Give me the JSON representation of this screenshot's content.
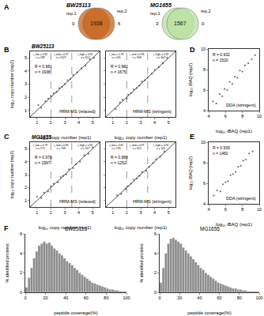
{
  "chart_data": [
    {
      "type": "venn",
      "panel": "A",
      "title": "BW25113",
      "sets": [
        "rep.1",
        "rep.2"
      ],
      "values": [
        0,
        1938,
        6
      ],
      "color": "#c8651b"
    },
    {
      "type": "venn",
      "title": "MG1655",
      "sets": [
        "rep.1",
        "rep.2"
      ],
      "values": [
        3,
        1567,
        0
      ],
      "color": "#b9e2a2"
    },
    {
      "type": "scatter",
      "panel": "B",
      "subtitle": "BW25113",
      "title": "HRM-MS (relaxed)",
      "stats": [
        "R = 0.981",
        "n = 1938"
      ],
      "xlabel": "log₁₀ copy number (rep1)",
      "ylabel": "log₁₀ copy number (rep2)",
      "x": [
        1.1,
        1.3,
        1.6,
        1.8,
        2.0,
        2.2,
        2.4,
        2.6,
        2.8,
        3.0,
        3.2,
        3.4,
        3.6,
        3.9,
        4.2,
        4.5,
        4.8,
        5.1
      ],
      "y": [
        1.4,
        1.2,
        1.7,
        1.9,
        2.1,
        2.3,
        2.4,
        2.7,
        2.8,
        3.0,
        3.3,
        3.4,
        3.7,
        3.9,
        4.2,
        4.4,
        4.9,
        5.0
      ],
      "xlim": [
        0.5,
        5.5
      ],
      "ylim": [
        0.5,
        5.5
      ],
      "xticks": [
        1,
        2,
        3,
        4,
        5
      ],
      "yticks": [
        1,
        2,
        3,
        4,
        5
      ],
      "vlines": [
        2,
        3.5
      ],
      "region_labels": [
        [
          "r_low = 0.81",
          "n = 289"
        ],
        [
          "r_mid = 0.97",
          "n = 1027"
        ],
        [
          "r_high = 0.92",
          "n = 622"
        ]
      ],
      "color": "#333333"
    },
    {
      "type": "scatter",
      "title": "HRM-MS (stringent)",
      "stats": [
        "R = 0.982",
        "n = 1675"
      ],
      "xlabel": "log₁₀ copy number (rep1)",
      "x": [
        1.2,
        1.5,
        1.7,
        2.0,
        2.1,
        2.3,
        2.5,
        2.7,
        2.9,
        3.1,
        3.3,
        3.5,
        3.8,
        4.0,
        4.3,
        4.6,
        4.9
      ],
      "y": [
        1.1,
        1.6,
        1.8,
        1.9,
        2.2,
        2.3,
        2.6,
        2.7,
        2.9,
        3.2,
        3.3,
        3.5,
        3.8,
        4.1,
        4.3,
        4.6,
        5.0
      ],
      "xlim": [
        0.5,
        5.5
      ],
      "ylim": [
        0.5,
        5.5
      ],
      "xticks": [
        1,
        2,
        3,
        4,
        5
      ],
      "yticks": [
        1,
        2,
        3,
        4,
        5
      ],
      "vlines": [
        2,
        3.5
      ],
      "tick_labels": "x",
      "region_labels": [
        [
          "r_low = 0.78",
          "n = 165"
        ],
        [
          "r_mid = 0.96",
          "n = 908"
        ],
        [
          "r_high = 0.92",
          "n = 602"
        ]
      ],
      "color": "#333333"
    },
    {
      "type": "scatter",
      "panel": "D",
      "title": "DDA (stringent)",
      "stats": [
        "R = 0.932",
        "n = 1520"
      ],
      "xlabel": "log₁₀ iBAQ (rep1)",
      "ylabel": "log₁₀ iBAQ (rep2)",
      "x": [
        4.5,
        4.9,
        5.3,
        5.6,
        5.9,
        6.2,
        6.5,
        6.8,
        7.1,
        7.4,
        7.7,
        8.0,
        8.3,
        8.7,
        9.1,
        9.5
      ],
      "y": [
        4.9,
        4.7,
        5.6,
        5.4,
        6.1,
        6.0,
        6.8,
        6.6,
        7.3,
        7.2,
        7.9,
        7.8,
        8.4,
        8.6,
        9.0,
        9.4
      ],
      "xlim": [
        4,
        10
      ],
      "ylim": [
        4,
        10
      ],
      "xticks": [
        4,
        6,
        8,
        10
      ],
      "yticks": [
        4,
        6,
        8,
        10
      ],
      "color": "#333333"
    },
    {
      "type": "scatter",
      "panel": "C",
      "subtitle": "MG1655",
      "title": "HRM-MS (relaxed)",
      "stats": [
        "R = 0.978",
        "n = 1567"
      ],
      "xlabel": "log₁₀ copy number (rep1)",
      "ylabel": "log₁₀ copy number (rep2)",
      "x": [
        1.0,
        1.3,
        1.5,
        1.8,
        2.0,
        2.2,
        2.5,
        2.7,
        2.9,
        3.1,
        3.3,
        3.6,
        3.8,
        4.1,
        4.4,
        4.7,
        5.0
      ],
      "y": [
        1.3,
        1.2,
        1.6,
        1.7,
        2.1,
        2.3,
        2.4,
        2.8,
        2.9,
        3.0,
        3.4,
        3.5,
        3.8,
        4.0,
        4.5,
        4.6,
        5.1
      ],
      "xlim": [
        0.5,
        5.5
      ],
      "ylim": [
        0.5,
        5.5
      ],
      "xticks": [
        1,
        2,
        3,
        4,
        5
      ],
      "yticks": [
        1,
        2,
        3,
        4,
        5
      ],
      "vlines": [
        2,
        3.5
      ],
      "region_labels": [
        [
          "r_low = 0.79",
          "n = 272"
        ],
        [
          "r_mid = 0.96",
          "n = 748"
        ],
        [
          "r_high = 0.92",
          "n = 547"
        ]
      ],
      "color": "#333333"
    },
    {
      "type": "scatter",
      "title": "HRM-MS (stringent)",
      "stats": [
        "R = 0.988",
        "n = 1252"
      ],
      "xlabel": "log₁₀ copy number (rep1)",
      "x": [
        1.3,
        1.6,
        1.9,
        2.1,
        2.3,
        2.5,
        2.7,
        2.9,
        3.1,
        3.4,
        3.6,
        3.9,
        4.1,
        4.4,
        4.7
      ],
      "y": [
        1.4,
        1.5,
        1.9,
        2.1,
        2.3,
        2.6,
        2.7,
        2.9,
        3.2,
        3.3,
        3.6,
        3.9,
        4.2,
        4.4,
        4.8
      ],
      "xlim": [
        0.5,
        5.5
      ],
      "ylim": [
        0.5,
        5.5
      ],
      "xticks": [
        1,
        2,
        3,
        4,
        5
      ],
      "yticks": [
        1,
        2,
        3,
        4,
        5
      ],
      "vlines": [
        2,
        3.5
      ],
      "tick_labels": "x",
      "region_labels": [
        [
          "r_low = 0.82",
          "n = 139"
        ],
        [
          "r_mid = 0.97",
          "n = 612"
        ],
        [
          "r_high = 0.95",
          "n = 501"
        ]
      ],
      "color": "#333333"
    },
    {
      "type": "scatter",
      "panel": "E",
      "title": "DDA (stringent)",
      "stats": [
        "R = 0.939",
        "n = 1482"
      ],
      "xlabel": "log₁₀ iBAQ (rep1)",
      "ylabel": "log₁₀ iBAQ (rep2)",
      "x": [
        4.6,
        5.0,
        5.4,
        5.7,
        6.0,
        6.3,
        6.6,
        6.9,
        7.2,
        7.5,
        7.8,
        8.1,
        8.4,
        8.8,
        9.2
      ],
      "y": [
        4.8,
        5.3,
        5.2,
        5.9,
        6.1,
        6.2,
        6.8,
        6.9,
        7.1,
        7.6,
        7.7,
        8.2,
        8.3,
        8.9,
        9.1
      ],
      "xlim": [
        4,
        10
      ],
      "ylim": [
        4,
        10
      ],
      "xticks": [
        4,
        6,
        8,
        10
      ],
      "yticks": [
        4,
        6,
        8,
        10
      ],
      "color": "#333333"
    },
    {
      "type": "histogram",
      "panel": "F",
      "title": "BW25113",
      "xlabel": "peptide coverage(%)",
      "ylabel": "% identified proteins",
      "bins": [
        0,
        2.5,
        5,
        7.5,
        10,
        12.5,
        15,
        17.5,
        20,
        22.5,
        25,
        27.5,
        30,
        32.5,
        35,
        37.5,
        40,
        42.5,
        45,
        47.5,
        50,
        52.5,
        55,
        57.5,
        60,
        62.5,
        65,
        67.5,
        70,
        72.5,
        75,
        77.5,
        80,
        82.5,
        85,
        87.5,
        90,
        92.5,
        95,
        97.5,
        100
      ],
      "values": [
        0.5,
        1.5,
        2.5,
        3.5,
        4.2,
        4.8,
        5.0,
        5.2,
        5.0,
        5.1,
        4.8,
        4.5,
        4.3,
        4.0,
        3.8,
        3.5,
        3.2,
        3.0,
        2.8,
        2.5,
        2.3,
        2.0,
        1.8,
        1.6,
        1.4,
        1.2,
        1.0,
        0.9,
        0.8,
        0.7,
        0.6,
        0.5,
        0.4,
        0.3,
        0.3,
        0.2,
        0.2,
        0.1,
        0.1,
        0.1
      ],
      "xlim": [
        0,
        100
      ],
      "ylim": [
        0,
        6
      ],
      "xticks": [
        0,
        20,
        40,
        60,
        80,
        100
      ],
      "yticks": [
        0,
        2,
        4,
        6
      ],
      "color": "#8c8c8c"
    },
    {
      "type": "histogram",
      "title": "MG1655",
      "xlabel": "peptide coverage(%)",
      "ylabel": "% identified proteins",
      "bins": [
        0,
        2.5,
        5,
        7.5,
        10,
        12.5,
        15,
        17.5,
        20,
        22.5,
        25,
        27.5,
        30,
        32.5,
        35,
        37.5,
        40,
        42.5,
        45,
        47.5,
        50,
        52.5,
        55,
        57.5,
        60,
        62.5,
        65,
        67.5,
        70,
        72.5,
        75,
        77.5,
        80,
        82.5,
        85,
        87.5,
        90,
        92.5,
        95,
        97.5,
        100
      ],
      "values": [
        1.0,
        2.5,
        4.0,
        5.0,
        5.5,
        5.6,
        5.4,
        5.2,
        5.0,
        4.6,
        4.3,
        4.0,
        3.7,
        3.4,
        3.1,
        2.8,
        2.5,
        2.3,
        2.0,
        1.8,
        1.6,
        1.4,
        1.2,
        1.0,
        0.9,
        0.8,
        0.7,
        0.6,
        0.5,
        0.4,
        0.4,
        0.3,
        0.3,
        0.2,
        0.2,
        0.1,
        0.1,
        0.1,
        0.1,
        0.1
      ],
      "xlim": [
        0,
        100
      ],
      "ylim": [
        0,
        6
      ],
      "xticks": [
        0,
        20,
        40,
        60,
        80,
        100
      ],
      "yticks": [
        0,
        2,
        4,
        6
      ],
      "color": "#8c8c8c"
    }
  ]
}
